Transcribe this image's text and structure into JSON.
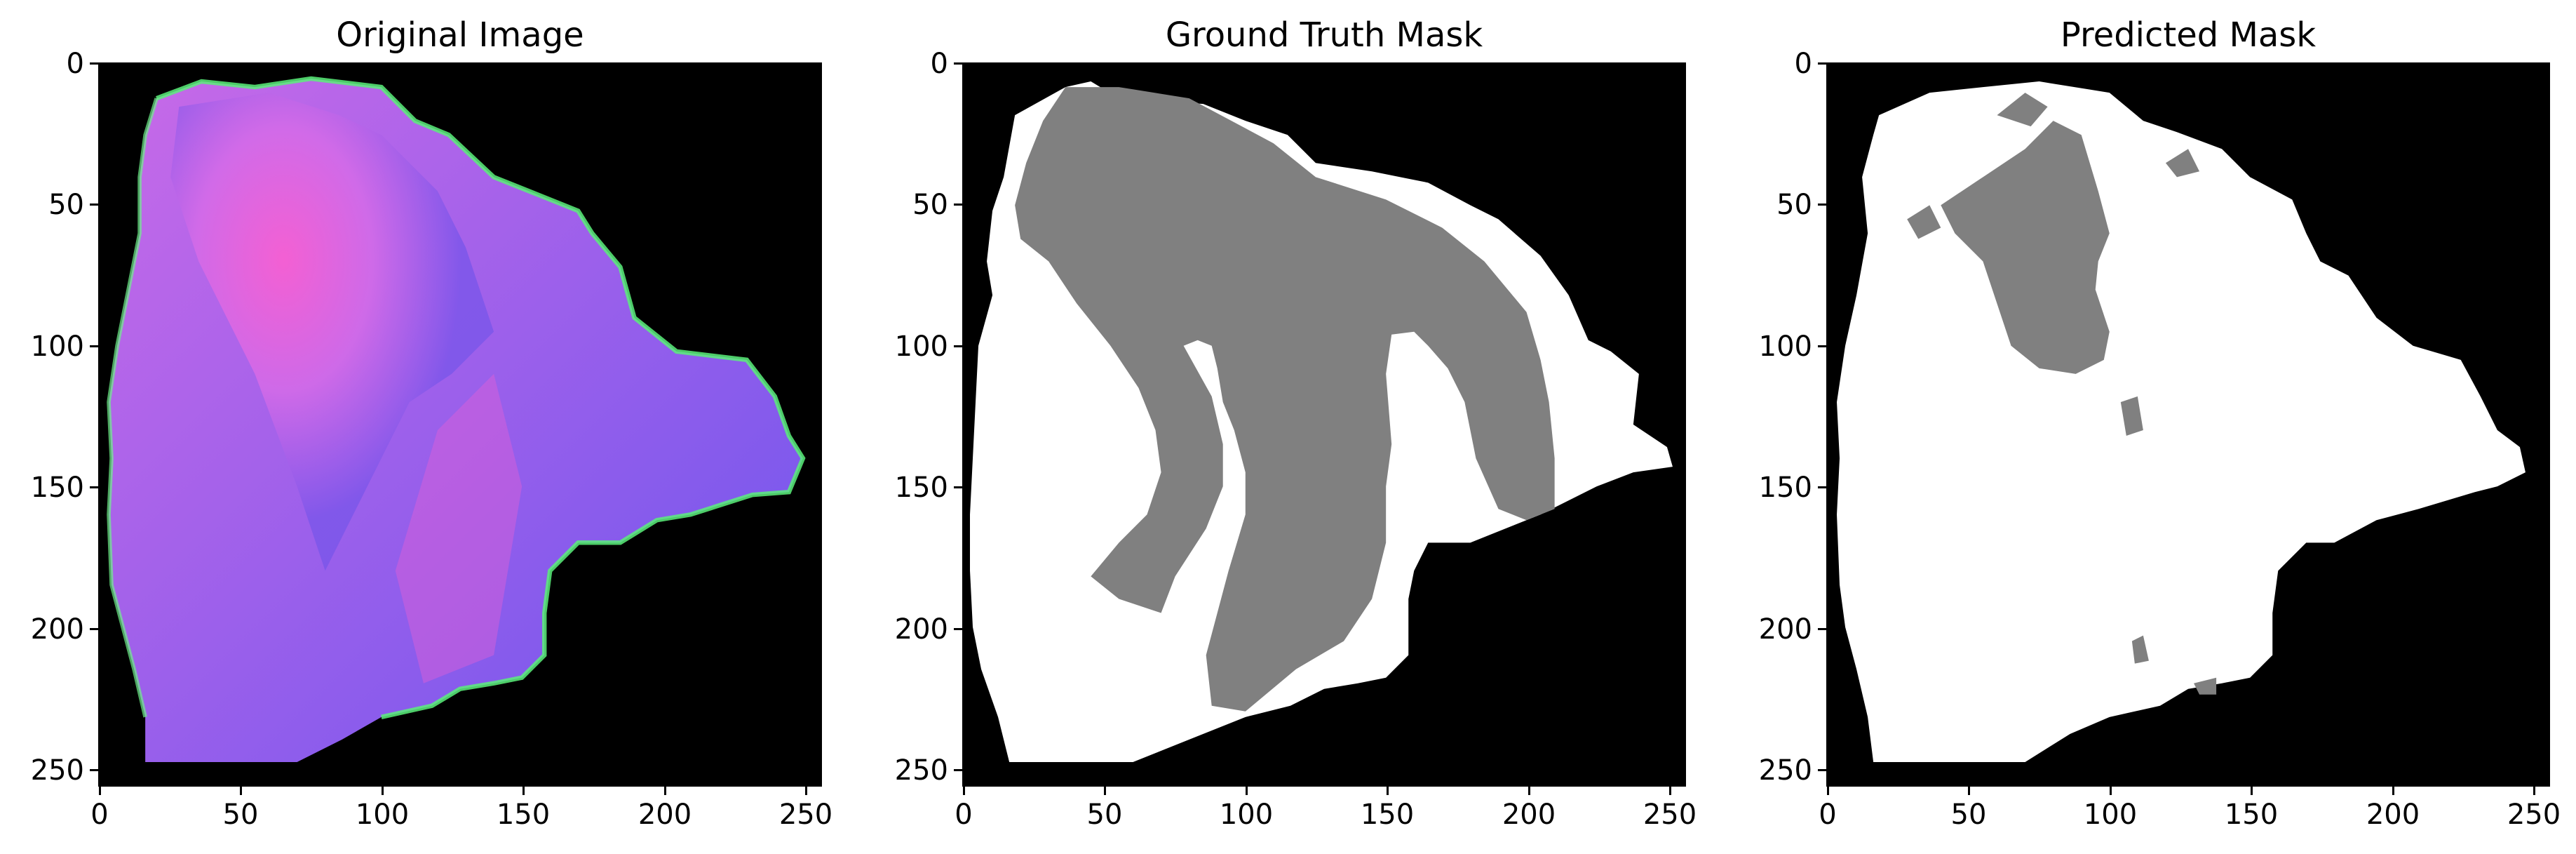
{
  "figure": {
    "panels": [
      {
        "id": "original",
        "title": "Original Image",
        "image_kind": "rgb-photo",
        "colors": {
          "background": "#000000",
          "tissue_dark": "#7a4fe6",
          "tissue_magenta": "#f05bd6",
          "edge_green": "#5bf07a"
        }
      },
      {
        "id": "ground-truth",
        "title": "Ground Truth Mask",
        "image_kind": "mask",
        "colors": {
          "background": "#000000",
          "region_white": "#ffffff",
          "region_gray": "#808080"
        }
      },
      {
        "id": "predicted",
        "title": "Predicted Mask",
        "image_kind": "mask",
        "colors": {
          "background": "#000000",
          "region_white": "#ffffff",
          "region_gray": "#808080"
        }
      }
    ],
    "x_ticks": [
      "0",
      "50",
      "100",
      "150",
      "200",
      "250"
    ],
    "y_ticks": [
      "0",
      "50",
      "100",
      "150",
      "200",
      "250"
    ]
  }
}
